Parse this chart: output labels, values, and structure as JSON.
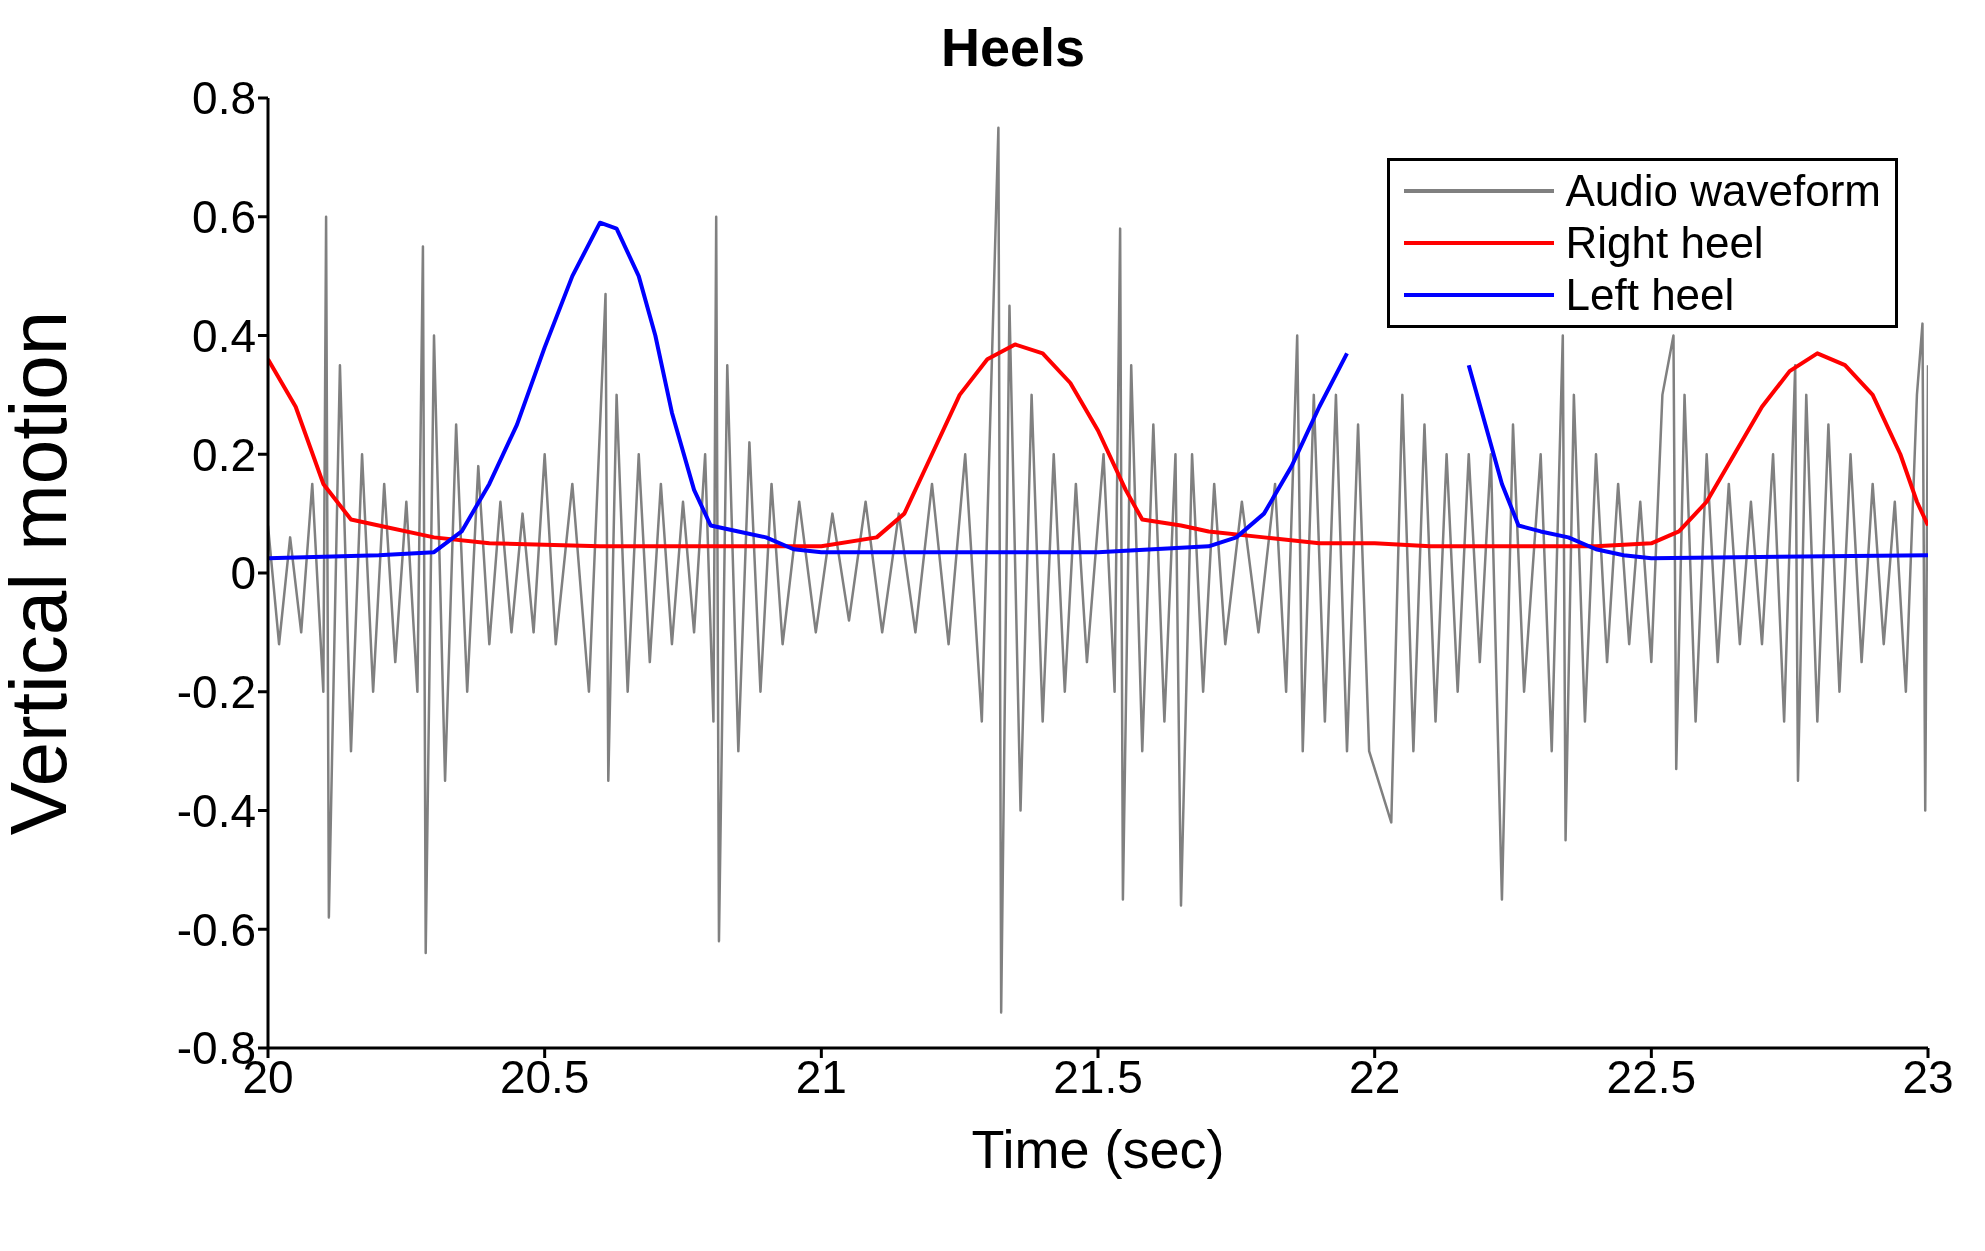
{
  "chart_data": {
    "type": "line",
    "title": "Heels",
    "xlabel": "Time (sec)",
    "ylabel": "Vertical motion",
    "xlim": [
      20,
      23
    ],
    "xticks": [
      20,
      20.5,
      21,
      21.5,
      22,
      22.5,
      23
    ],
    "ylim": [
      -0.8,
      0.8
    ],
    "yticks": [
      -0.8,
      -0.6,
      -0.4,
      -0.2,
      0,
      0.2,
      0.4,
      0.6,
      0.8
    ],
    "legend": "top right",
    "grid": false,
    "marker": "none",
    "line_style": "solid",
    "series": [
      {
        "name": "Audio waveform",
        "color": "#808080",
        "x": [
          20.0,
          20.02,
          20.04,
          20.06,
          20.08,
          20.1,
          20.105,
          20.11,
          20.13,
          20.15,
          20.17,
          20.19,
          20.21,
          20.23,
          20.25,
          20.27,
          20.28,
          20.285,
          20.3,
          20.32,
          20.34,
          20.36,
          20.38,
          20.4,
          20.42,
          20.44,
          20.46,
          20.48,
          20.5,
          20.52,
          20.55,
          20.58,
          20.61,
          20.615,
          20.63,
          20.65,
          20.67,
          20.69,
          20.71,
          20.73,
          20.75,
          20.77,
          20.79,
          20.805,
          20.81,
          20.815,
          20.83,
          20.85,
          20.87,
          20.89,
          20.91,
          20.93,
          20.96,
          20.99,
          21.02,
          21.05,
          21.08,
          21.11,
          21.14,
          21.17,
          21.2,
          21.23,
          21.26,
          21.29,
          21.32,
          21.325,
          21.34,
          21.36,
          21.38,
          21.4,
          21.42,
          21.44,
          21.46,
          21.48,
          21.51,
          21.53,
          21.54,
          21.545,
          21.56,
          21.58,
          21.6,
          21.62,
          21.64,
          21.65,
          21.67,
          21.69,
          21.71,
          21.73,
          21.76,
          21.79,
          21.82,
          21.84,
          21.86,
          21.87,
          21.89,
          21.91,
          21.93,
          21.95,
          21.97,
          21.99,
          22.03,
          22.05,
          22.07,
          22.09,
          22.11,
          22.13,
          22.15,
          22.17,
          22.19,
          22.21,
          22.23,
          22.25,
          22.27,
          22.3,
          22.32,
          22.34,
          22.345,
          22.36,
          22.38,
          22.4,
          22.42,
          22.44,
          22.46,
          22.48,
          22.5,
          22.52,
          22.54,
          22.545,
          22.56,
          22.58,
          22.6,
          22.62,
          22.64,
          22.66,
          22.68,
          22.7,
          22.72,
          22.74,
          22.76,
          22.765,
          22.78,
          22.8,
          22.82,
          22.84,
          22.86,
          22.88,
          22.9,
          22.92,
          22.94,
          22.96,
          22.98,
          22.99,
          22.995,
          23.0
        ],
        "values": [
          0.08,
          -0.12,
          0.06,
          -0.1,
          0.15,
          -0.2,
          0.6,
          -0.58,
          0.35,
          -0.3,
          0.2,
          -0.2,
          0.15,
          -0.15,
          0.12,
          -0.2,
          0.55,
          -0.64,
          0.4,
          -0.35,
          0.25,
          -0.2,
          0.18,
          -0.12,
          0.12,
          -0.1,
          0.1,
          -0.1,
          0.2,
          -0.12,
          0.15,
          -0.2,
          0.47,
          -0.35,
          0.3,
          -0.2,
          0.2,
          -0.15,
          0.15,
          -0.12,
          0.12,
          -0.1,
          0.2,
          -0.25,
          0.6,
          -0.62,
          0.35,
          -0.3,
          0.22,
          -0.2,
          0.15,
          -0.12,
          0.12,
          -0.1,
          0.1,
          -0.08,
          0.12,
          -0.1,
          0.1,
          -0.1,
          0.15,
          -0.12,
          0.2,
          -0.25,
          0.75,
          -0.74,
          0.45,
          -0.4,
          0.3,
          -0.25,
          0.2,
          -0.2,
          0.15,
          -0.15,
          0.2,
          -0.2,
          0.58,
          -0.55,
          0.35,
          -0.3,
          0.25,
          -0.25,
          0.2,
          -0.56,
          0.2,
          -0.2,
          0.15,
          -0.12,
          0.12,
          -0.1,
          0.15,
          -0.2,
          0.4,
          -0.3,
          0.3,
          -0.25,
          0.3,
          -0.3,
          0.25,
          -0.3,
          -0.42,
          0.3,
          -0.3,
          0.25,
          -0.25,
          0.2,
          -0.2,
          0.2,
          -0.15,
          0.2,
          -0.55,
          0.25,
          -0.2,
          0.2,
          -0.3,
          0.4,
          -0.45,
          0.3,
          -0.25,
          0.2,
          -0.15,
          0.15,
          -0.12,
          0.12,
          -0.15,
          0.3,
          0.4,
          -0.33,
          0.3,
          -0.25,
          0.2,
          -0.15,
          0.15,
          -0.12,
          0.12,
          -0.12,
          0.2,
          -0.25,
          0.35,
          -0.35,
          0.3,
          -0.25,
          0.25,
          -0.2,
          0.2,
          -0.15,
          0.15,
          -0.12,
          0.12,
          -0.2,
          0.3,
          0.42,
          -0.4,
          0.35
        ]
      },
      {
        "name": "Right heel",
        "color": "#ff0000",
        "x": [
          20.0,
          20.05,
          20.1,
          20.15,
          20.2,
          20.3,
          20.4,
          20.6,
          20.8,
          21.0,
          21.1,
          21.15,
          21.2,
          21.25,
          21.3,
          21.35,
          21.4,
          21.45,
          21.5,
          21.55,
          21.58,
          21.65,
          21.7,
          21.8,
          21.9,
          22.0,
          22.1,
          22.2,
          22.3,
          22.4,
          22.5,
          22.55,
          22.6,
          22.65,
          22.7,
          22.75,
          22.8,
          22.85,
          22.9,
          22.95,
          22.98,
          23.0
        ],
        "values": [
          0.36,
          0.28,
          0.15,
          0.09,
          0.08,
          0.06,
          0.05,
          0.045,
          0.045,
          0.045,
          0.06,
          0.1,
          0.2,
          0.3,
          0.36,
          0.385,
          0.37,
          0.32,
          0.24,
          0.14,
          0.09,
          0.08,
          0.07,
          0.06,
          0.05,
          0.05,
          0.045,
          0.045,
          0.045,
          0.045,
          0.05,
          0.07,
          0.12,
          0.2,
          0.28,
          0.34,
          0.37,
          0.35,
          0.3,
          0.2,
          0.12,
          0.08
        ]
      },
      {
        "name": "Left heel",
        "color": "#0000ff",
        "x": [
          20.0,
          20.2,
          20.3,
          20.35,
          20.4,
          20.45,
          20.5,
          20.55,
          20.6,
          20.63,
          20.67,
          20.7,
          20.73,
          20.77,
          20.8,
          20.85,
          20.9,
          20.95,
          21.0,
          21.5,
          21.7,
          21.75,
          21.8,
          21.85,
          21.9,
          21.95,
          22.0,
          22.1,
          22.17,
          22.2,
          22.23,
          22.26,
          22.3,
          22.35,
          22.4,
          22.45,
          22.5,
          23.0
        ],
        "values": [
          0.025,
          0.03,
          0.035,
          0.07,
          0.15,
          0.25,
          0.38,
          0.5,
          0.59,
          0.58,
          0.5,
          0.4,
          0.27,
          0.14,
          0.08,
          0.07,
          0.06,
          0.04,
          0.035,
          0.035,
          0.045,
          0.06,
          0.1,
          0.18,
          0.28,
          0.37,
          null,
          null,
          0.35,
          0.25,
          0.15,
          0.08,
          0.07,
          0.06,
          0.04,
          0.03,
          0.025,
          0.03
        ]
      }
    ]
  }
}
